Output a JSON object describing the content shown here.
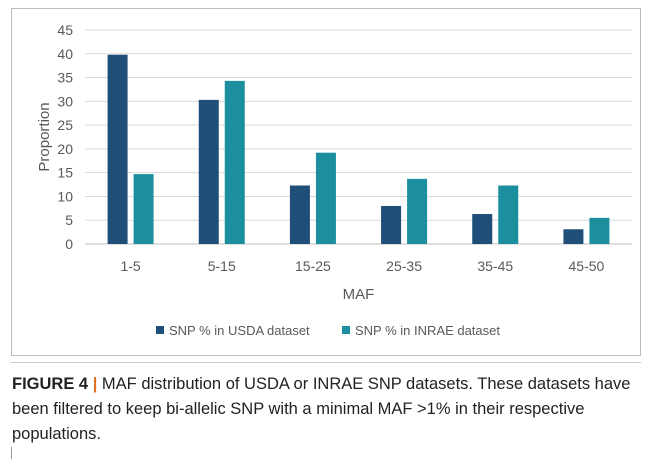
{
  "chart_data": {
    "type": "bar",
    "title": "",
    "xlabel": "MAF",
    "ylabel": "Proportion",
    "ylim": [
      0,
      45
    ],
    "yticks": [
      "0",
      "5",
      "10",
      "15",
      "20",
      "25",
      "30",
      "35",
      "40",
      "45"
    ],
    "grid": true,
    "legend_position": "bottom",
    "categories": [
      "1-5",
      "5-15",
      "15-25",
      "25-35",
      "35-45",
      "45-50"
    ],
    "series": [
      {
        "name": "SNP % in USDA dataset",
        "color": "#1f4e79",
        "values": [
          39.8,
          30.3,
          12.3,
          8.0,
          6.3,
          3.1
        ]
      },
      {
        "name": "SNP % in INRAE dataset",
        "color": "#1b8f9e",
        "values": [
          14.7,
          34.3,
          19.2,
          13.7,
          12.3,
          5.5
        ]
      }
    ]
  },
  "caption": {
    "label": "FIGURE 4",
    "separator": " | ",
    "text": "MAF distribution of USDA or INRAE SNP datasets. These datasets have been filtered to keep bi-allelic SNP with a minimal MAF >1% in their respective populations."
  }
}
